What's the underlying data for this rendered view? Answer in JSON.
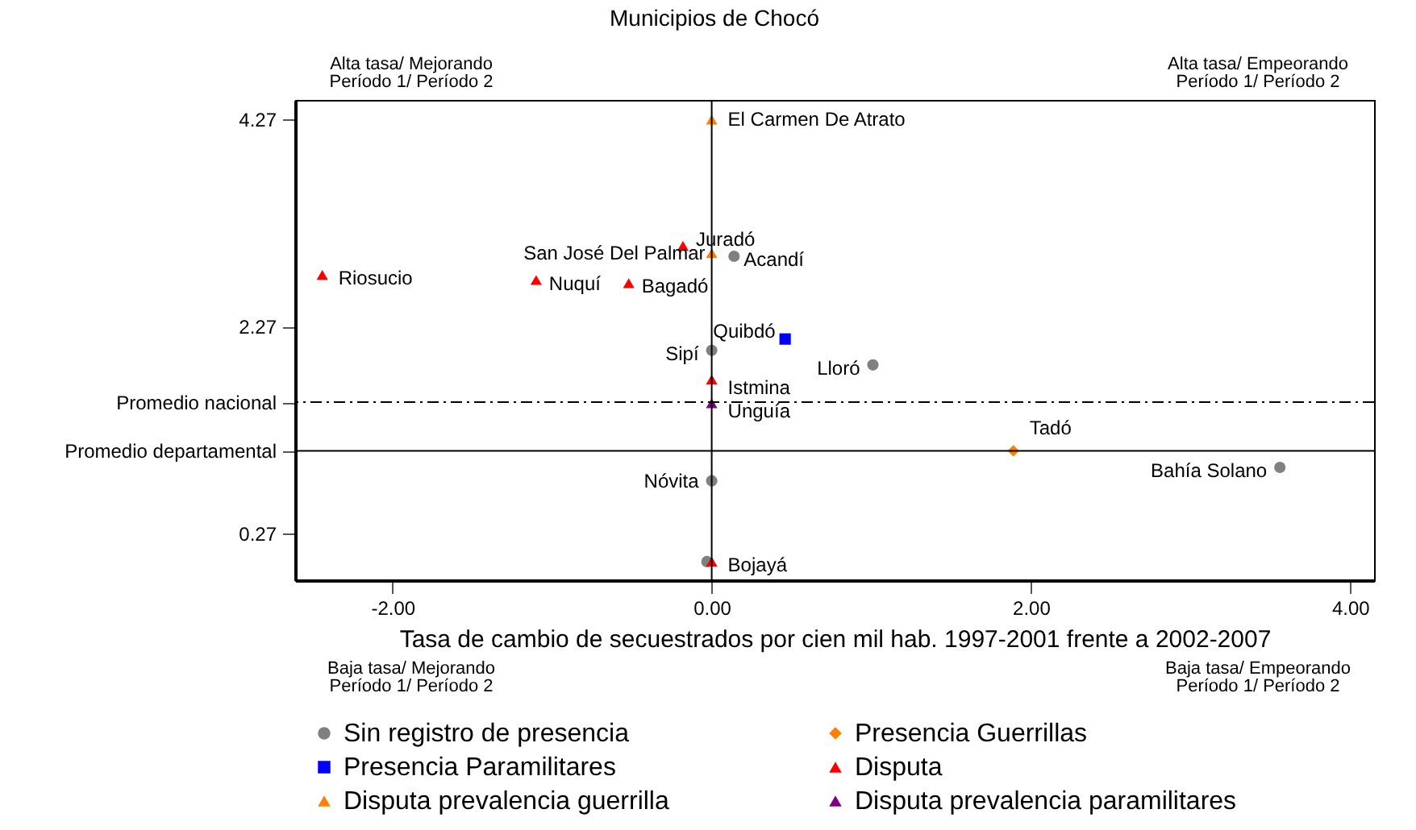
{
  "chart_data": {
    "type": "scatter",
    "title": "Municipios de Chocó",
    "xlabel": "Tasa de cambio de secuestrados por cien mil hab. 1997-2001 frente a 2002-2007",
    "xlim": [
      -2.61,
      4.15
    ],
    "ylim": [
      -0.18,
      4.46
    ],
    "xticks": [
      {
        "value": -2,
        "label": "-2.00"
      },
      {
        "value": 0,
        "label": "0.00"
      },
      {
        "value": 2,
        "label": "2.00"
      },
      {
        "value": 4,
        "label": "4.00"
      }
    ],
    "yticks": [
      0.27,
      {
        "value": 1.07,
        "label": "Promedio departamental"
      },
      {
        "value": 1.54,
        "label": "Promedio nacional"
      },
      2.27,
      4.27
    ],
    "grid": false,
    "legend": "bottom",
    "series": [
      {
        "name": "Sin registro de presencia",
        "color": "#808080",
        "marker": "circle",
        "x": [
          0.14,
          0,
          1.01,
          0,
          3.56,
          -0.03
        ],
        "values": [
          2.95,
          2.04,
          1.9,
          0.78,
          0.91,
          0
        ]
      },
      {
        "name": "Presencia Guerrillas",
        "color": "#ff8000",
        "marker": "diamond",
        "x": [
          1.89
        ],
        "values": [
          1.07
        ]
      },
      {
        "name": "Presencia Paramilitares",
        "color": "#0000ff",
        "marker": "square",
        "x": [
          0.46
        ],
        "values": [
          2.15
        ]
      },
      {
        "name": "Disputa",
        "color": "#ff0000",
        "marker": "triangle",
        "x": [
          -2.44,
          -1.1,
          -0.52,
          -0.18,
          0,
          0
        ],
        "values": [
          2.77,
          2.72,
          2.69,
          3.05,
          1.76,
          0
        ]
      },
      {
        "name": "Disputa prevalencia guerrilla",
        "color": "#ff8000",
        "marker": "triangle",
        "x": [
          0,
          0
        ],
        "values": [
          4.27,
          2.98
        ]
      },
      {
        "name": "Disputa prevalencia paramilitares",
        "color": "#800080",
        "marker": "triangle",
        "x": [
          0
        ],
        "values": [
          1.53
        ]
      }
    ],
    "ref_lines": [
      {
        "axis": "y",
        "value": 1.54,
        "line_style": "dashed"
      },
      {
        "axis": "y",
        "value": 1.07,
        "line_style": "solid"
      },
      {
        "axis": "x",
        "value": 0,
        "line_style": "solid"
      }
    ],
    "annotations": [
      {
        "text": "El Carmen De Atrato",
        "x": 0,
        "y": 4.27
      },
      {
        "text": "Juradó",
        "x": -0.18,
        "y": 3.05
      },
      {
        "text": "San José Del Palmar",
        "x": 0,
        "y": 2.98
      },
      {
        "text": "Acandí",
        "x": 0.14,
        "y": 2.95
      },
      {
        "text": "Riosucio",
        "x": -2.44,
        "y": 2.77
      },
      {
        "text": "Nuquí",
        "x": -1.1,
        "y": 2.72
      },
      {
        "text": "Bagadó",
        "x": -0.52,
        "y": 2.69
      },
      {
        "text": "Quibdó",
        "x": 0.46,
        "y": 2.15
      },
      {
        "text": "Sipí",
        "x": 0,
        "y": 2.04
      },
      {
        "text": "Lloró",
        "x": 1.01,
        "y": 1.9
      },
      {
        "text": "Istmina",
        "x": 0,
        "y": 1.76
      },
      {
        "text": "Unguía",
        "x": 0,
        "y": 1.53
      },
      {
        "text": "Tadó",
        "x": 1.89,
        "y": 1.07
      },
      {
        "text": "Bahía Solano",
        "x": 3.56,
        "y": 0.91
      },
      {
        "text": "Nóvita",
        "x": 0,
        "y": 0.78
      },
      {
        "text": "Bojayá",
        "x": 0,
        "y": 0
      },
      "Alta tasa/ Mejorando\nPeríodo 1/ Período 2",
      "Alta tasa/ Empeorando\nPeríodo 1/ Período 2",
      "Baja tasa/ Mejorando\nPeríodo 1/ Período 2",
      "Baja tasa/ Empeorando\nPeríodo 1/ Período 2"
    ]
  }
}
